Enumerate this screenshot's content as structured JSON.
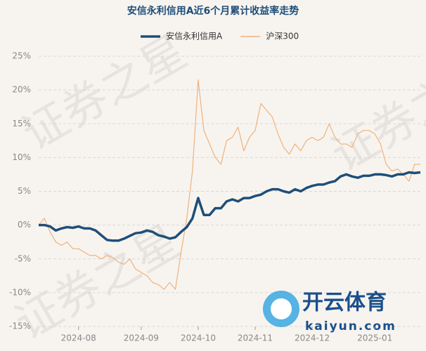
{
  "chart_data": {
    "type": "line",
    "title": "安信永利信用A近6个月累计收益率走势",
    "categories": [
      null,
      null,
      null,
      null,
      null,
      null,
      null,
      "2024-08",
      null,
      null,
      null,
      null,
      null,
      null,
      null,
      null,
      null,
      null,
      "2024-09",
      null,
      null,
      null,
      null,
      null,
      null,
      null,
      null,
      null,
      "2024-10",
      null,
      null,
      null,
      null,
      null,
      null,
      null,
      null,
      null,
      "2024-11",
      null,
      null,
      null,
      null,
      null,
      null,
      null,
      null,
      null,
      "2024-12",
      null,
      null,
      null,
      null,
      null,
      null,
      null,
      null,
      null,
      null,
      "2025-01",
      null,
      null,
      null,
      null,
      null,
      null,
      null,
      null
    ],
    "series": [
      {
        "name": "安信永利信用A",
        "color": "#1f4e79",
        "values": [
          0,
          0,
          -0.2,
          -0.8,
          -0.5,
          -0.3,
          -0.4,
          -0.2,
          -0.5,
          -0.5,
          -0.8,
          -1.5,
          -2.2,
          -2.3,
          -2.3,
          -2.0,
          -1.6,
          -1.2,
          -1.1,
          -0.8,
          -1.0,
          -1.5,
          -1.7,
          -2.0,
          -1.8,
          -1.0,
          -0.3,
          1.0,
          4.0,
          1.5,
          1.5,
          2.5,
          2.5,
          3.5,
          3.8,
          3.5,
          4.0,
          4.0,
          4.3,
          4.5,
          5.0,
          5.3,
          5.3,
          5.0,
          4.8,
          5.3,
          5.0,
          5.5,
          5.8,
          6.0,
          6.0,
          6.3,
          6.5,
          7.2,
          7.5,
          7.2,
          7.0,
          7.3,
          7.3,
          7.5,
          7.5,
          7.4,
          7.2,
          7.5,
          7.5,
          7.8,
          7.7,
          7.8
        ]
      },
      {
        "name": "沪深300",
        "color": "#f0b27a",
        "values": [
          0,
          1.0,
          -1.0,
          -2.5,
          -3.0,
          -2.5,
          -3.5,
          -3.5,
          -4.0,
          -4.5,
          -4.5,
          -5.0,
          -4.5,
          -4.8,
          -5.5,
          -5.8,
          -5.0,
          -6.5,
          -7.0,
          -7.5,
          -8.5,
          -8.8,
          -9.5,
          -8.5,
          -9.5,
          -4.0,
          1.0,
          8.0,
          21.5,
          14.0,
          12.0,
          10.0,
          9.0,
          12.5,
          13.0,
          14.5,
          11.0,
          13.0,
          14.0,
          18.0,
          17.0,
          16.0,
          13.5,
          11.5,
          10.5,
          12.0,
          11.0,
          12.5,
          13.0,
          12.5,
          13.0,
          15.0,
          13.0,
          12.0,
          12.0,
          11.5,
          13.5,
          14.0,
          14.0,
          13.5,
          12.0,
          9.0,
          8.0,
          8.3,
          7.5,
          6.5,
          9.0,
          9.0
        ]
      }
    ],
    "ylim": [
      -15,
      25
    ],
    "yticks": [
      {
        "value": 25,
        "label": "25%"
      },
      {
        "value": 20,
        "label": "20%"
      },
      {
        "value": 15,
        "label": "15%"
      },
      {
        "value": 10,
        "label": "10%"
      },
      {
        "value": 5,
        "label": "5%"
      },
      {
        "value": 0,
        "label": "0%"
      },
      {
        "value": -5,
        "label": "-5%"
      },
      {
        "value": -10,
        "label": "-10%"
      },
      {
        "value": -15,
        "label": "-15%"
      }
    ],
    "grid": true,
    "legend": "top",
    "watermarks": [
      "证券之星",
      "开云体育",
      "kaiyun.com"
    ]
  }
}
